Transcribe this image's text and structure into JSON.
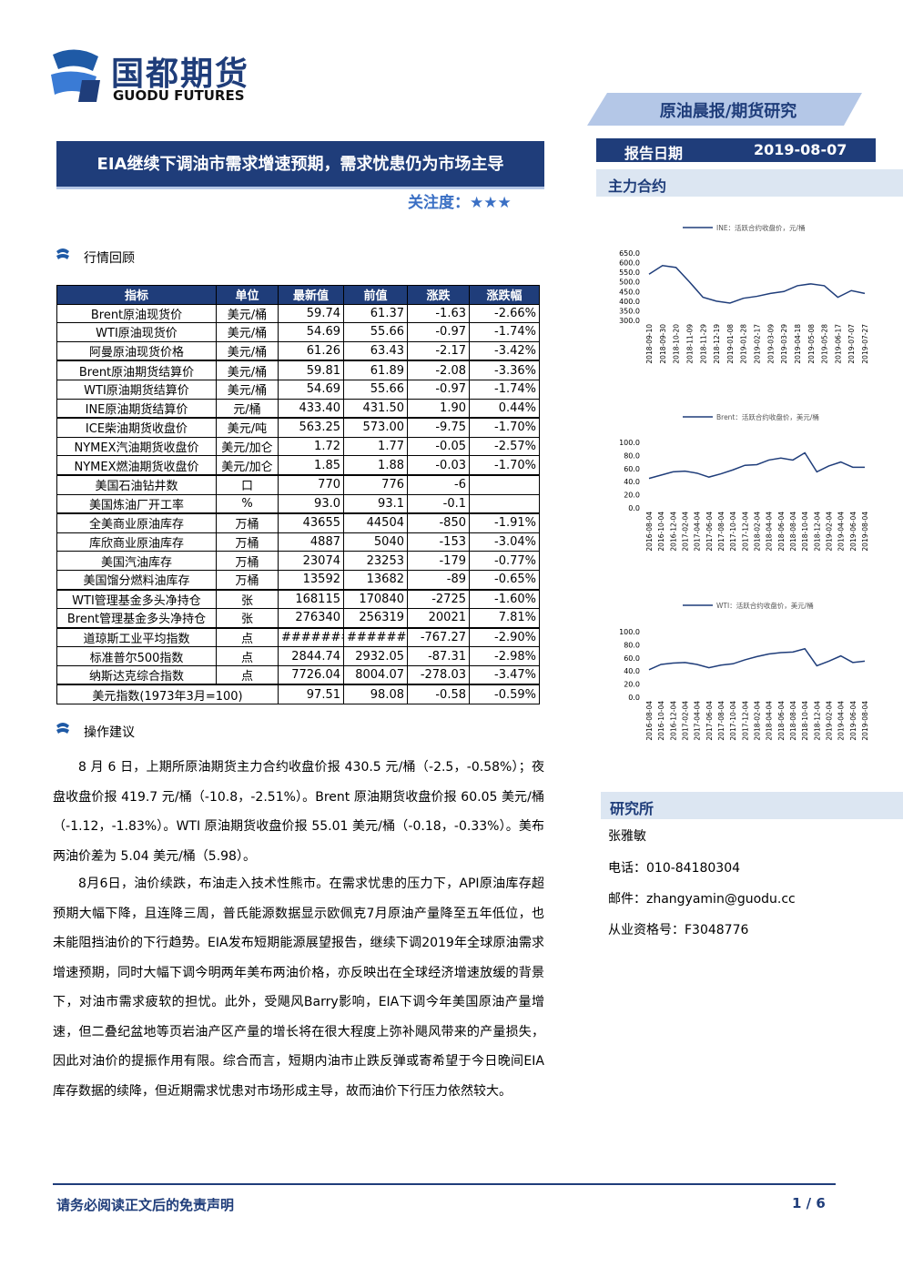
{
  "header": {
    "logo_cn": "国都期货",
    "logo_en": "GUODU FUTURES",
    "banner": "原油晨报/期货研究",
    "title": "EIA继续下调油市需求增速预期，需求忧患仍为市场主导",
    "attention_label": "关注度：",
    "attention_stars": "★★★",
    "report_date_label": "报告日期",
    "report_date": "2019-08-07",
    "contract_heading": "主力合约"
  },
  "review_heading": "行情回顾",
  "table": {
    "header": [
      "指标",
      "单位",
      "最新值",
      "前值",
      "涨跌",
      "涨跌幅"
    ],
    "rows": [
      [
        "Brent原油现货价",
        "美元/桶",
        "59.74",
        "61.37",
        "-1.63",
        "-2.66%"
      ],
      [
        "WTI原油现货价",
        "美元/桶",
        "54.69",
        "55.66",
        "-0.97",
        "-1.74%"
      ],
      [
        "阿曼原油现货价格",
        "美元/桶",
        "61.26",
        "63.43",
        "-2.17",
        "-3.42%"
      ],
      [
        "Brent原油期货结算价",
        "美元/桶",
        "59.81",
        "61.89",
        "-2.08",
        "-3.36%"
      ],
      [
        "WTI原油期货结算价",
        "美元/桶",
        "54.69",
        "55.66",
        "-0.97",
        "-1.74%"
      ],
      [
        "INE原油期货结算价",
        "元/桶",
        "433.40",
        "431.50",
        "1.90",
        "0.44%"
      ],
      [
        "ICE柴油期货收盘价",
        "美元/吨",
        "563.25",
        "573.00",
        "-9.75",
        "-1.70%"
      ],
      [
        "NYMEX汽油期货收盘价",
        "美元/加仑",
        "1.72",
        "1.77",
        "-0.05",
        "-2.57%"
      ],
      [
        "NYMEX燃油期货收盘价",
        "美元/加仑",
        "1.85",
        "1.88",
        "-0.03",
        "-1.70%"
      ],
      [
        "美国石油钻井数",
        "口",
        "770",
        "776",
        "-6",
        null
      ],
      [
        "美国炼油厂开工率",
        "%",
        "93.0",
        "93.1",
        "-0.1",
        null
      ],
      [
        "全美商业原油库存",
        "万桶",
        "43655",
        "44504",
        "-850",
        "-1.91%"
      ],
      [
        "库欣商业原油库存",
        "万桶",
        "4887",
        "5040",
        "-153",
        "-3.04%"
      ],
      [
        "美国汽油库存",
        "万桶",
        "23074",
        "23253",
        "-179",
        "-0.77%"
      ],
      [
        "美国馏分燃料油库存",
        "万桶",
        "13592",
        "13682",
        "-89",
        "-0.65%"
      ],
      [
        "WTI管理基金多头净持仓",
        "张",
        "168115",
        "170840",
        "-2725",
        "-1.60%"
      ],
      [
        "Brent管理基金多头净持仓",
        "张",
        "276340",
        "256319",
        "20021",
        "7.81%"
      ],
      [
        "道琼斯工业平均指数",
        "点",
        "########",
        "########",
        "-767.27",
        "-2.90%"
      ],
      [
        "标准普尔500指数",
        "点",
        "2844.74",
        "2932.05",
        "-87.31",
        "-2.98%"
      ],
      [
        "纳斯达克综合指数",
        "点",
        "7726.04",
        "8004.07",
        "-278.03",
        "-3.47%"
      ],
      [
        "美元指数(1973年3月=100)",
        "97.51",
        "98.08",
        "-0.58",
        "-0.59%"
      ]
    ]
  },
  "advice_heading": "操作建议",
  "paragraphs": [
    "8 月 6 日，上期所原油期货主力合约收盘价报 430.5 元/桶（-2.5，-0.58%）；夜盘收盘价报 419.7 元/桶（-10.8，-2.51%）。Brent 原油期货收盘价报 60.05 美元/桶（-1.12，-1.83%）。WTI 原油期货收盘价报 55.01 美元/桶（-0.18，-0.33%）。美布两油价差为 5.04 美元/桶（5.98）。",
    "8月6日，油价续跌，布油走入技术性熊市。在需求忧患的压力下，API原油库存超预期大幅下降，且连降三周，普氏能源数据显示欧佩克7月原油产量降至五年低位，也未能阻挡油价的下行趋势。EIA发布短期能源展望报告，继续下调2019年全球原油需求增速预期，同时大幅下调今明两年美布两油价格，亦反映出在全球经济增速放缓的背景下，对油市需求疲软的担忧。此外，受飓风Barry影响，EIA下调今年美国原油产量增速，但二叠纪盆地等页岩油产区产量的增长将在很大程度上弥补飓风带来的产量损失，因此对油价的提振作用有限。综合而言，短期内油市止跌反弹或寄希望于今日晚间EIA库存数据的续降，但近期需求忧患对市场形成主导，故而油价下行压力依然较大。"
  ],
  "research": {
    "heading": "研究所",
    "name": "张雅敏",
    "phone": "电话：010-84180304",
    "email": "邮件：zhangyamin@guodu.cc",
    "license": "从业资格号：F3048776"
  },
  "footer": {
    "disclaimer": "请务必阅读正文后的免责声明",
    "page": "1 / 6"
  },
  "chart_data": [
    {
      "type": "line",
      "categories": [
        "2018-09-10",
        "2018-09-30",
        "2018-10-20",
        "2018-11-09",
        "2018-11-29",
        "2018-12-19",
        "2019-01-08",
        "2019-01-28",
        "2019-02-17",
        "2019-03-09",
        "2019-03-29",
        "2019-04-18",
        "2019-05-08",
        "2019-05-28",
        "2019-06-17",
        "2019-07-07",
        "2019-07-27"
      ],
      "series": [
        {
          "name": "INE：活跃合约收盘价，元/桶",
          "color": "#1f3d7a",
          "values": [
            540,
            585,
            575,
            500,
            420,
            400,
            390,
            415,
            425,
            440,
            450,
            480,
            490,
            480,
            420,
            455,
            440
          ]
        }
      ],
      "ylim": [
        300,
        650
      ],
      "yticks": [
        {
          "value": 300,
          "label": "300.0"
        },
        {
          "value": 350,
          "label": "350.0"
        },
        {
          "value": 400,
          "label": "400.0"
        },
        {
          "value": 450,
          "label": "450.0"
        },
        {
          "value": 500,
          "label": "500.0"
        },
        {
          "value": 550,
          "label": "550.0"
        },
        {
          "value": 600,
          "label": "600.0"
        },
        {
          "value": 650,
          "label": "650.0"
        }
      ]
    },
    {
      "type": "line",
      "categories": [
        "2016-08-04",
        "2016-10-04",
        "2016-12-04",
        "2017-02-04",
        "2017-04-04",
        "2017-06-04",
        "2017-08-04",
        "2017-10-04",
        "2017-12-04",
        "2018-02-04",
        "2018-04-04",
        "2018-06-04",
        "2018-08-04",
        "2018-10-04",
        "2018-12-04",
        "2019-02-04",
        "2019-04-04",
        "2019-06-04",
        "2019-08-04"
      ],
      "series": [
        {
          "name": "Brent：活跃合约收盘价，美元/桶",
          "color": "#1f3d7a",
          "values": [
            45,
            50,
            55,
            56,
            53,
            47,
            52,
            58,
            65,
            66,
            73,
            76,
            73,
            84,
            55,
            64,
            70,
            62,
            62
          ]
        }
      ],
      "ylim": [
        0,
        100
      ],
      "yticks": [
        {
          "value": 0,
          "label": "0.0"
        },
        {
          "value": 20,
          "label": "20.0"
        },
        {
          "value": 40,
          "label": "40.0"
        },
        {
          "value": 60,
          "label": "60.0"
        },
        {
          "value": 80,
          "label": "80.0"
        },
        {
          "value": 100,
          "label": "100.0"
        }
      ]
    },
    {
      "type": "line",
      "categories": [
        "2016-08-04",
        "2016-10-04",
        "2016-12-04",
        "2017-02-04",
        "2017-04-04",
        "2017-06-04",
        "2017-08-04",
        "2017-10-04",
        "2017-12-04",
        "2018-02-04",
        "2018-04-04",
        "2018-06-04",
        "2018-08-04",
        "2018-10-04",
        "2018-12-04",
        "2019-02-04",
        "2019-04-04",
        "2019-06-04",
        "2019-08-04"
      ],
      "series": [
        {
          "name": "WTI：活跃合约收盘价，美元/桶",
          "color": "#1f3d7a",
          "values": [
            42,
            50,
            52,
            53,
            50,
            45,
            49,
            51,
            57,
            62,
            66,
            68,
            69,
            74,
            48,
            55,
            63,
            53,
            55
          ]
        }
      ],
      "ylim": [
        0,
        100
      ],
      "yticks": [
        {
          "value": 0,
          "label": "0.0"
        },
        {
          "value": 20,
          "label": "20.0"
        },
        {
          "value": 40,
          "label": "40.0"
        },
        {
          "value": 60,
          "label": "60.0"
        },
        {
          "value": 80,
          "label": "80.0"
        },
        {
          "value": 100,
          "label": "100.0"
        }
      ]
    }
  ]
}
